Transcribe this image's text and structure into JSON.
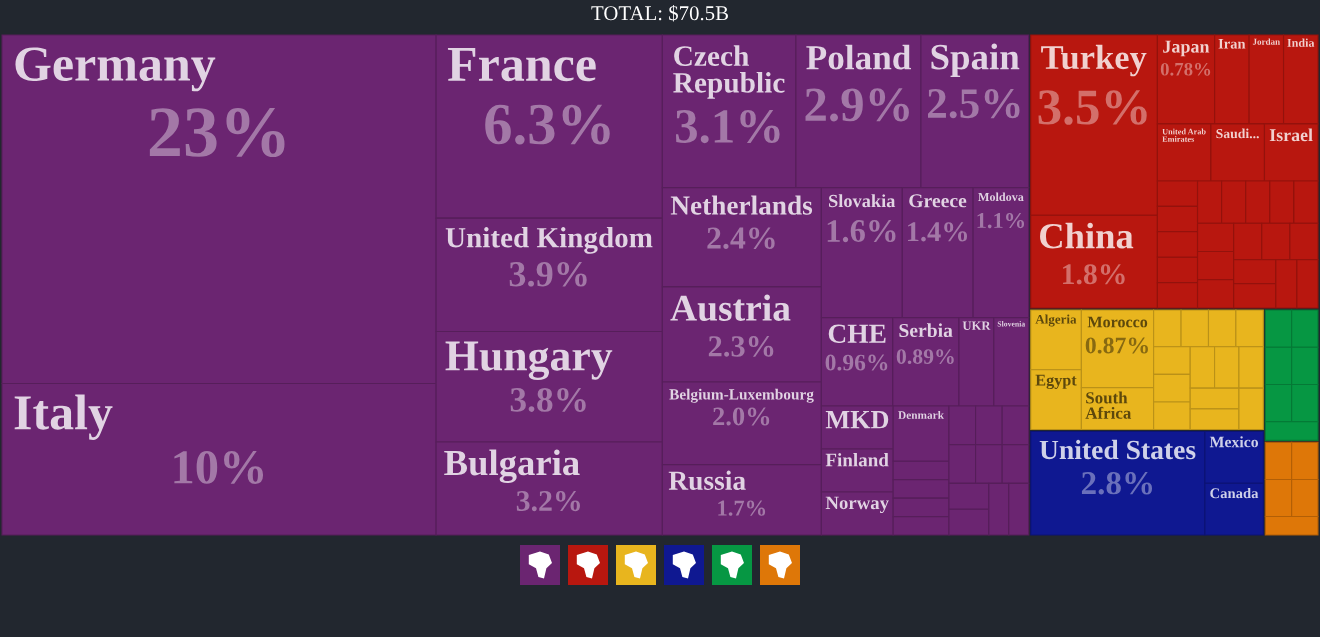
{
  "chart_data": {
    "type": "other",
    "title": "TOTAL: $70.5B",
    "categories": [
      "Germany",
      "Italy",
      "France",
      "United Kingdom",
      "Hungary",
      "Bulgaria",
      "Czech Republic",
      "Poland",
      "Spain",
      "Netherlands",
      "Austria",
      "Belgium-Luxembourg",
      "Russia",
      "Slovakia",
      "Greece",
      "Moldova",
      "CHE",
      "Serbia",
      "UKR",
      "Slovenia",
      "MKD",
      "Finland",
      "Norway",
      "Denmark",
      null,
      null,
      null,
      null,
      null,
      null,
      null,
      null,
      null,
      null,
      null,
      null,
      null,
      null,
      "Turkey",
      "China",
      "Japan",
      "Iran",
      "Jordan",
      "India",
      "United Arab Emirates",
      "Saudi...",
      "Israel",
      null,
      null,
      null,
      null,
      null,
      null,
      null,
      null,
      null,
      null,
      null,
      null,
      null,
      null,
      null,
      null,
      null,
      null,
      null,
      null,
      "Algeria",
      "Egypt",
      "Morocco",
      "South Africa",
      null,
      null,
      null,
      null,
      null,
      null,
      null,
      null,
      null,
      null,
      null,
      null,
      null,
      "United States",
      "Mexico",
      "Canada",
      null,
      null,
      null,
      null,
      null,
      null,
      null,
      null,
      null,
      null,
      null,
      null
    ],
    "values": [
      23,
      10,
      6.3,
      3.9,
      3.8,
      3.2,
      3.1,
      2.9,
      2.5,
      2.4,
      2.3,
      2.0,
      1.7,
      1.6,
      1.4,
      1.1,
      0.96,
      0.89,
      null,
      null,
      null,
      null,
      null,
      null,
      null,
      null,
      null,
      null,
      null,
      null,
      null,
      null,
      null,
      null,
      null,
      null,
      null,
      null,
      3.5,
      1.8,
      0.78,
      null,
      null,
      null,
      null,
      null,
      null,
      null,
      null,
      null,
      null,
      null,
      null,
      null,
      null,
      null,
      null,
      null,
      null,
      null,
      null,
      null,
      null,
      null,
      null,
      null,
      null,
      null,
      null,
      0.87,
      null,
      null,
      null,
      null,
      null,
      null,
      null,
      null,
      null,
      null,
      null,
      null,
      null,
      null,
      2.8,
      null,
      null,
      null,
      null,
      null,
      null,
      null,
      null,
      null,
      null,
      null,
      null,
      null,
      null
    ],
    "value_labels": [
      "23%",
      "10%",
      "6.3%",
      "3.9%",
      "3.8%",
      "3.2%",
      "3.1%",
      "2.9%",
      "2.5%",
      "2.4%",
      "2.3%",
      "2.0%",
      "1.7%",
      "1.6%",
      "1.4%",
      "1.1%",
      "0.96%",
      "0.89%",
      null,
      null,
      null,
      null,
      null,
      null,
      null,
      null,
      null,
      null,
      null,
      null,
      null,
      null,
      null,
      null,
      null,
      null,
      null,
      null,
      "3.5%",
      "1.8%",
      "0.78%",
      null,
      null,
      null,
      null,
      null,
      null,
      null,
      null,
      null,
      null,
      null,
      null,
      null,
      null,
      null,
      null,
      null,
      null,
      null,
      null,
      null,
      null,
      null,
      null,
      null,
      null,
      null,
      null,
      "0.87%",
      null,
      null,
      null,
      null,
      null,
      null,
      null,
      null,
      null,
      null,
      null,
      null,
      null,
      null,
      "2.8%",
      null,
      null,
      null,
      null,
      null,
      null,
      null,
      null,
      null,
      null,
      null,
      null,
      null,
      null
    ],
    "colors": [
      "#6b2571",
      "#6b2571",
      "#6b2571",
      "#6b2571",
      "#6b2571",
      "#6b2571",
      "#6b2571",
      "#6b2571",
      "#6b2571",
      "#6b2571",
      "#6b2571",
      "#6b2571",
      "#6b2571",
      "#6b2571",
      "#6b2571",
      "#6b2571",
      "#6b2571",
      "#6b2571",
      "#6b2571",
      "#6b2571",
      "#6b2571",
      "#6b2571",
      "#6b2571",
      "#6b2571",
      "#6b2571",
      "#6b2571",
      "#6b2571",
      "#6b2571",
      "#6b2571",
      "#6b2571",
      "#6b2571",
      "#6b2571",
      "#6b2571",
      "#6b2571",
      "#6b2571",
      "#6b2571",
      "#6b2571",
      "#6b2571",
      "#b8170f",
      "#b8170f",
      "#b8170f",
      "#b8170f",
      "#b8170f",
      "#b8170f",
      "#b8170f",
      "#b8170f",
      "#b8170f",
      "#b8170f",
      "#b8170f",
      "#b8170f",
      "#b8170f",
      "#b8170f",
      "#b8170f",
      "#b8170f",
      "#b8170f",
      "#b8170f",
      "#b8170f",
      "#b8170f",
      "#b8170f",
      "#b8170f",
      "#b8170f",
      "#b8170f",
      "#b8170f",
      "#b8170f",
      "#b8170f",
      "#b8170f",
      "#b8170f",
      "#e8b51e",
      "#e8b51e",
      "#e8b51e",
      "#e8b51e",
      "#e8b51e",
      "#e8b51e",
      "#e8b51e",
      "#e8b51e",
      "#e8b51e",
      "#e8b51e",
      "#e8b51e",
      "#e8b51e",
      "#e8b51e",
      "#e8b51e",
      "#e8b51e",
      "#e8b51e",
      "#e8b51e",
      "#0f1891",
      "#0f1891",
      "#0f1891",
      "#069743",
      "#069743",
      "#069743",
      "#069743",
      "#069743",
      "#069743",
      "#069743",
      "#de7708",
      "#de7708",
      "#de7708",
      "#de7708",
      "#de7708"
    ]
  }
}
